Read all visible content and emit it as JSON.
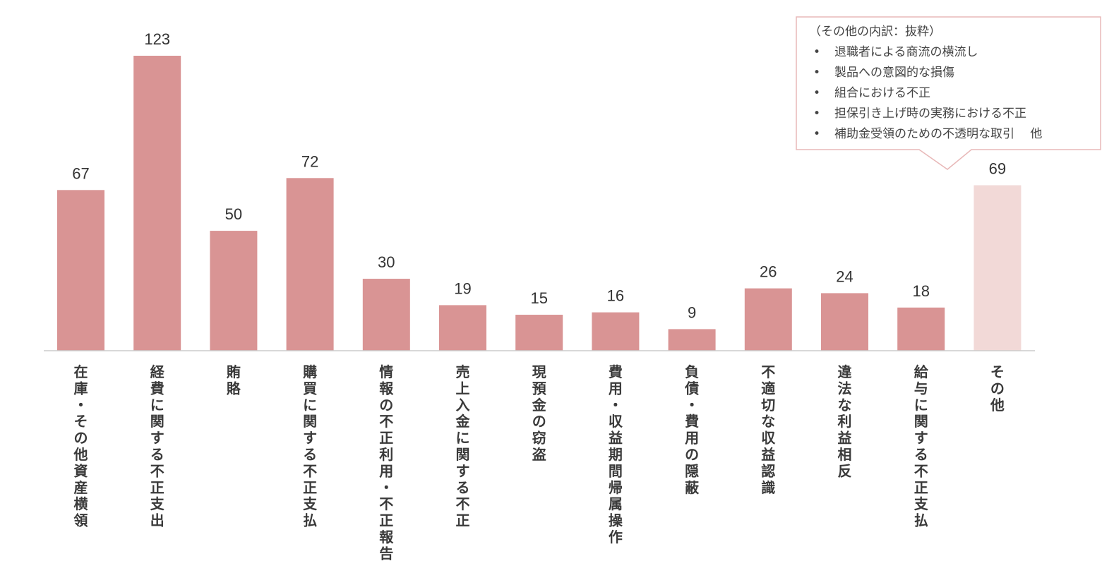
{
  "chart_data": {
    "type": "bar",
    "categories": [
      "在庫・その他資産横領",
      "経費に関する不正支出",
      "賄賂",
      "購買に関する不正支払",
      "情報の不正利用・不正報告",
      "売上入金に関する不正",
      "現預金の窃盗",
      "費用・収益期間帰属操作",
      "負債・費用の隠蔽",
      "不適切な収益認識",
      "違法な利益相反",
      "給与に関する不正支払",
      "その他"
    ],
    "values": [
      67,
      123,
      50,
      72,
      30,
      19,
      15,
      16,
      9,
      26,
      24,
      18,
      69
    ],
    "ylim": [
      0,
      130
    ],
    "grid": false,
    "legend": "none",
    "colors": {
      "bar": "#d99494",
      "bar_highlight": "#f2d9d7",
      "axis": "#cccccc",
      "callout_border": "#e8b8b8"
    },
    "highlight_index": 12,
    "callout": {
      "title": "（その他の内訳：抜粋）",
      "items": [
        "退職者による商流の横流し",
        "製品への意図的な損傷",
        "組合における不正",
        "担保引き上げ時の実務における不正",
        "補助金受領のための不透明な取引　 他"
      ]
    }
  }
}
